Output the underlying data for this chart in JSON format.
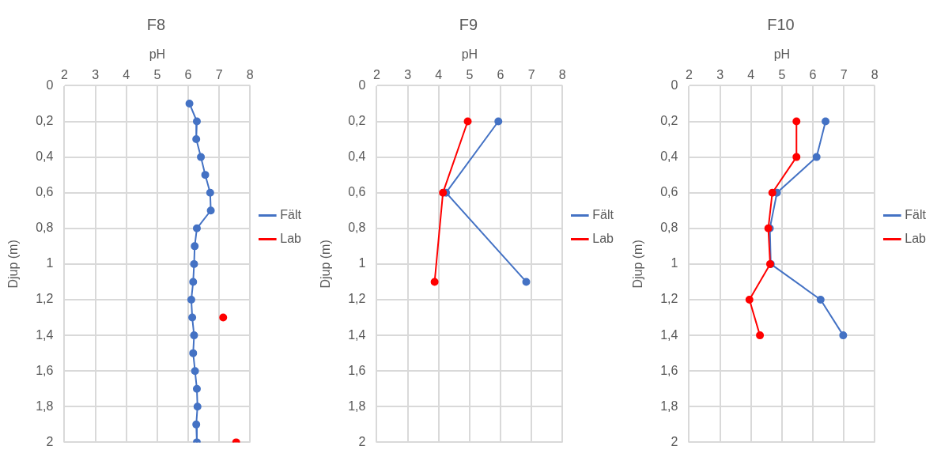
{
  "chart_data": [
    {
      "type": "line",
      "title": "F8",
      "xlabel": "pH",
      "ylabel": "Djup (m)",
      "xlim": [
        2,
        8
      ],
      "xticks": [
        2,
        3,
        4,
        5,
        6,
        7,
        8
      ],
      "ylim": [
        2,
        0
      ],
      "yticks": [
        0,
        {
          "value": 0.2,
          "label": "0,2"
        },
        {
          "value": 0.4,
          "label": "0,4"
        },
        {
          "value": 0.6,
          "label": "0,6"
        },
        {
          "value": 0.8,
          "label": "0,8"
        },
        1,
        {
          "value": 1.2,
          "label": "1,2"
        },
        {
          "value": 1.4,
          "label": "1,4"
        },
        {
          "value": 1.6,
          "label": "1,6"
        },
        {
          "value": 1.8,
          "label": "1,8"
        },
        2
      ],
      "grid": true,
      "legend": "right",
      "marker": "circle",
      "series": [
        {
          "name": "Fält",
          "color": "#4472c4",
          "x": [
            6.04,
            6.28,
            6.26,
            6.41,
            6.55,
            6.71,
            6.73,
            6.28,
            6.21,
            6.19,
            6.16,
            6.1,
            6.13,
            6.19,
            6.16,
            6.22,
            6.28,
            6.3,
            6.26,
            6.28
          ],
          "values": [
            0.1,
            0.2,
            0.3,
            0.4,
            0.5,
            0.6,
            0.7,
            0.8,
            0.9,
            1.0,
            1.1,
            1.2,
            1.3,
            1.4,
            1.5,
            1.6,
            1.7,
            1.8,
            1.9,
            2.0
          ]
        },
        {
          "name": "Lab",
          "color": "#ff0000",
          "type": "scatter",
          "x": [
            7.13,
            7.55
          ],
          "values": [
            1.3,
            2.0
          ]
        }
      ]
    },
    {
      "type": "line",
      "title": "F9",
      "xlabel": "pH",
      "ylabel": "Djup (m)",
      "xlim": [
        2,
        8
      ],
      "xticks": [
        2,
        3,
        4,
        5,
        6,
        7,
        8
      ],
      "ylim": [
        2,
        0
      ],
      "yticks": [
        0,
        {
          "value": 0.2,
          "label": "0,2"
        },
        {
          "value": 0.4,
          "label": "0,4"
        },
        {
          "value": 0.6,
          "label": "0,6"
        },
        {
          "value": 0.8,
          "label": "0,8"
        },
        1,
        {
          "value": 1.2,
          "label": "1,2"
        },
        {
          "value": 1.4,
          "label": "1,4"
        },
        {
          "value": 1.6,
          "label": "1,6"
        },
        {
          "value": 1.8,
          "label": "1,8"
        },
        2
      ],
      "grid": true,
      "legend": "right",
      "marker": "circle",
      "series": [
        {
          "name": "Fält",
          "color": "#4472c4",
          "x": [
            5.93,
            4.24,
            6.83
          ],
          "values": [
            0.2,
            0.6,
            1.1
          ]
        },
        {
          "name": "Lab",
          "color": "#ff0000",
          "x": [
            4.94,
            4.14,
            3.87
          ],
          "values": [
            0.2,
            0.6,
            1.1
          ]
        }
      ]
    },
    {
      "type": "line",
      "title": "F10",
      "xlabel": "pH",
      "ylabel": "Djup (m)",
      "xlim": [
        2,
        8
      ],
      "xticks": [
        2,
        3,
        4,
        5,
        6,
        7,
        8
      ],
      "ylim": [
        2,
        0
      ],
      "yticks": [
        0,
        {
          "value": 0.2,
          "label": "0,2"
        },
        {
          "value": 0.4,
          "label": "0,4"
        },
        {
          "value": 0.6,
          "label": "0,6"
        },
        {
          "value": 0.8,
          "label": "0,8"
        },
        1,
        {
          "value": 1.2,
          "label": "1,2"
        },
        {
          "value": 1.4,
          "label": "1,4"
        },
        {
          "value": 1.6,
          "label": "1,6"
        },
        {
          "value": 1.8,
          "label": "1,8"
        },
        2
      ],
      "grid": true,
      "legend": "right",
      "marker": "circle",
      "series": [
        {
          "name": "Fält",
          "color": "#4472c4",
          "x": [
            6.41,
            6.12,
            4.84,
            4.61,
            4.64,
            6.25,
            6.98
          ],
          "values": [
            0.2,
            0.4,
            0.6,
            0.8,
            1.0,
            1.2,
            1.4
          ]
        },
        {
          "name": "Lab",
          "color": "#ff0000",
          "x": [
            5.47,
            5.47,
            4.69,
            4.56,
            4.62,
            3.95,
            4.29
          ],
          "values": [
            0.2,
            0.4,
            0.6,
            0.8,
            1.0,
            1.2,
            1.4
          ]
        }
      ]
    }
  ]
}
